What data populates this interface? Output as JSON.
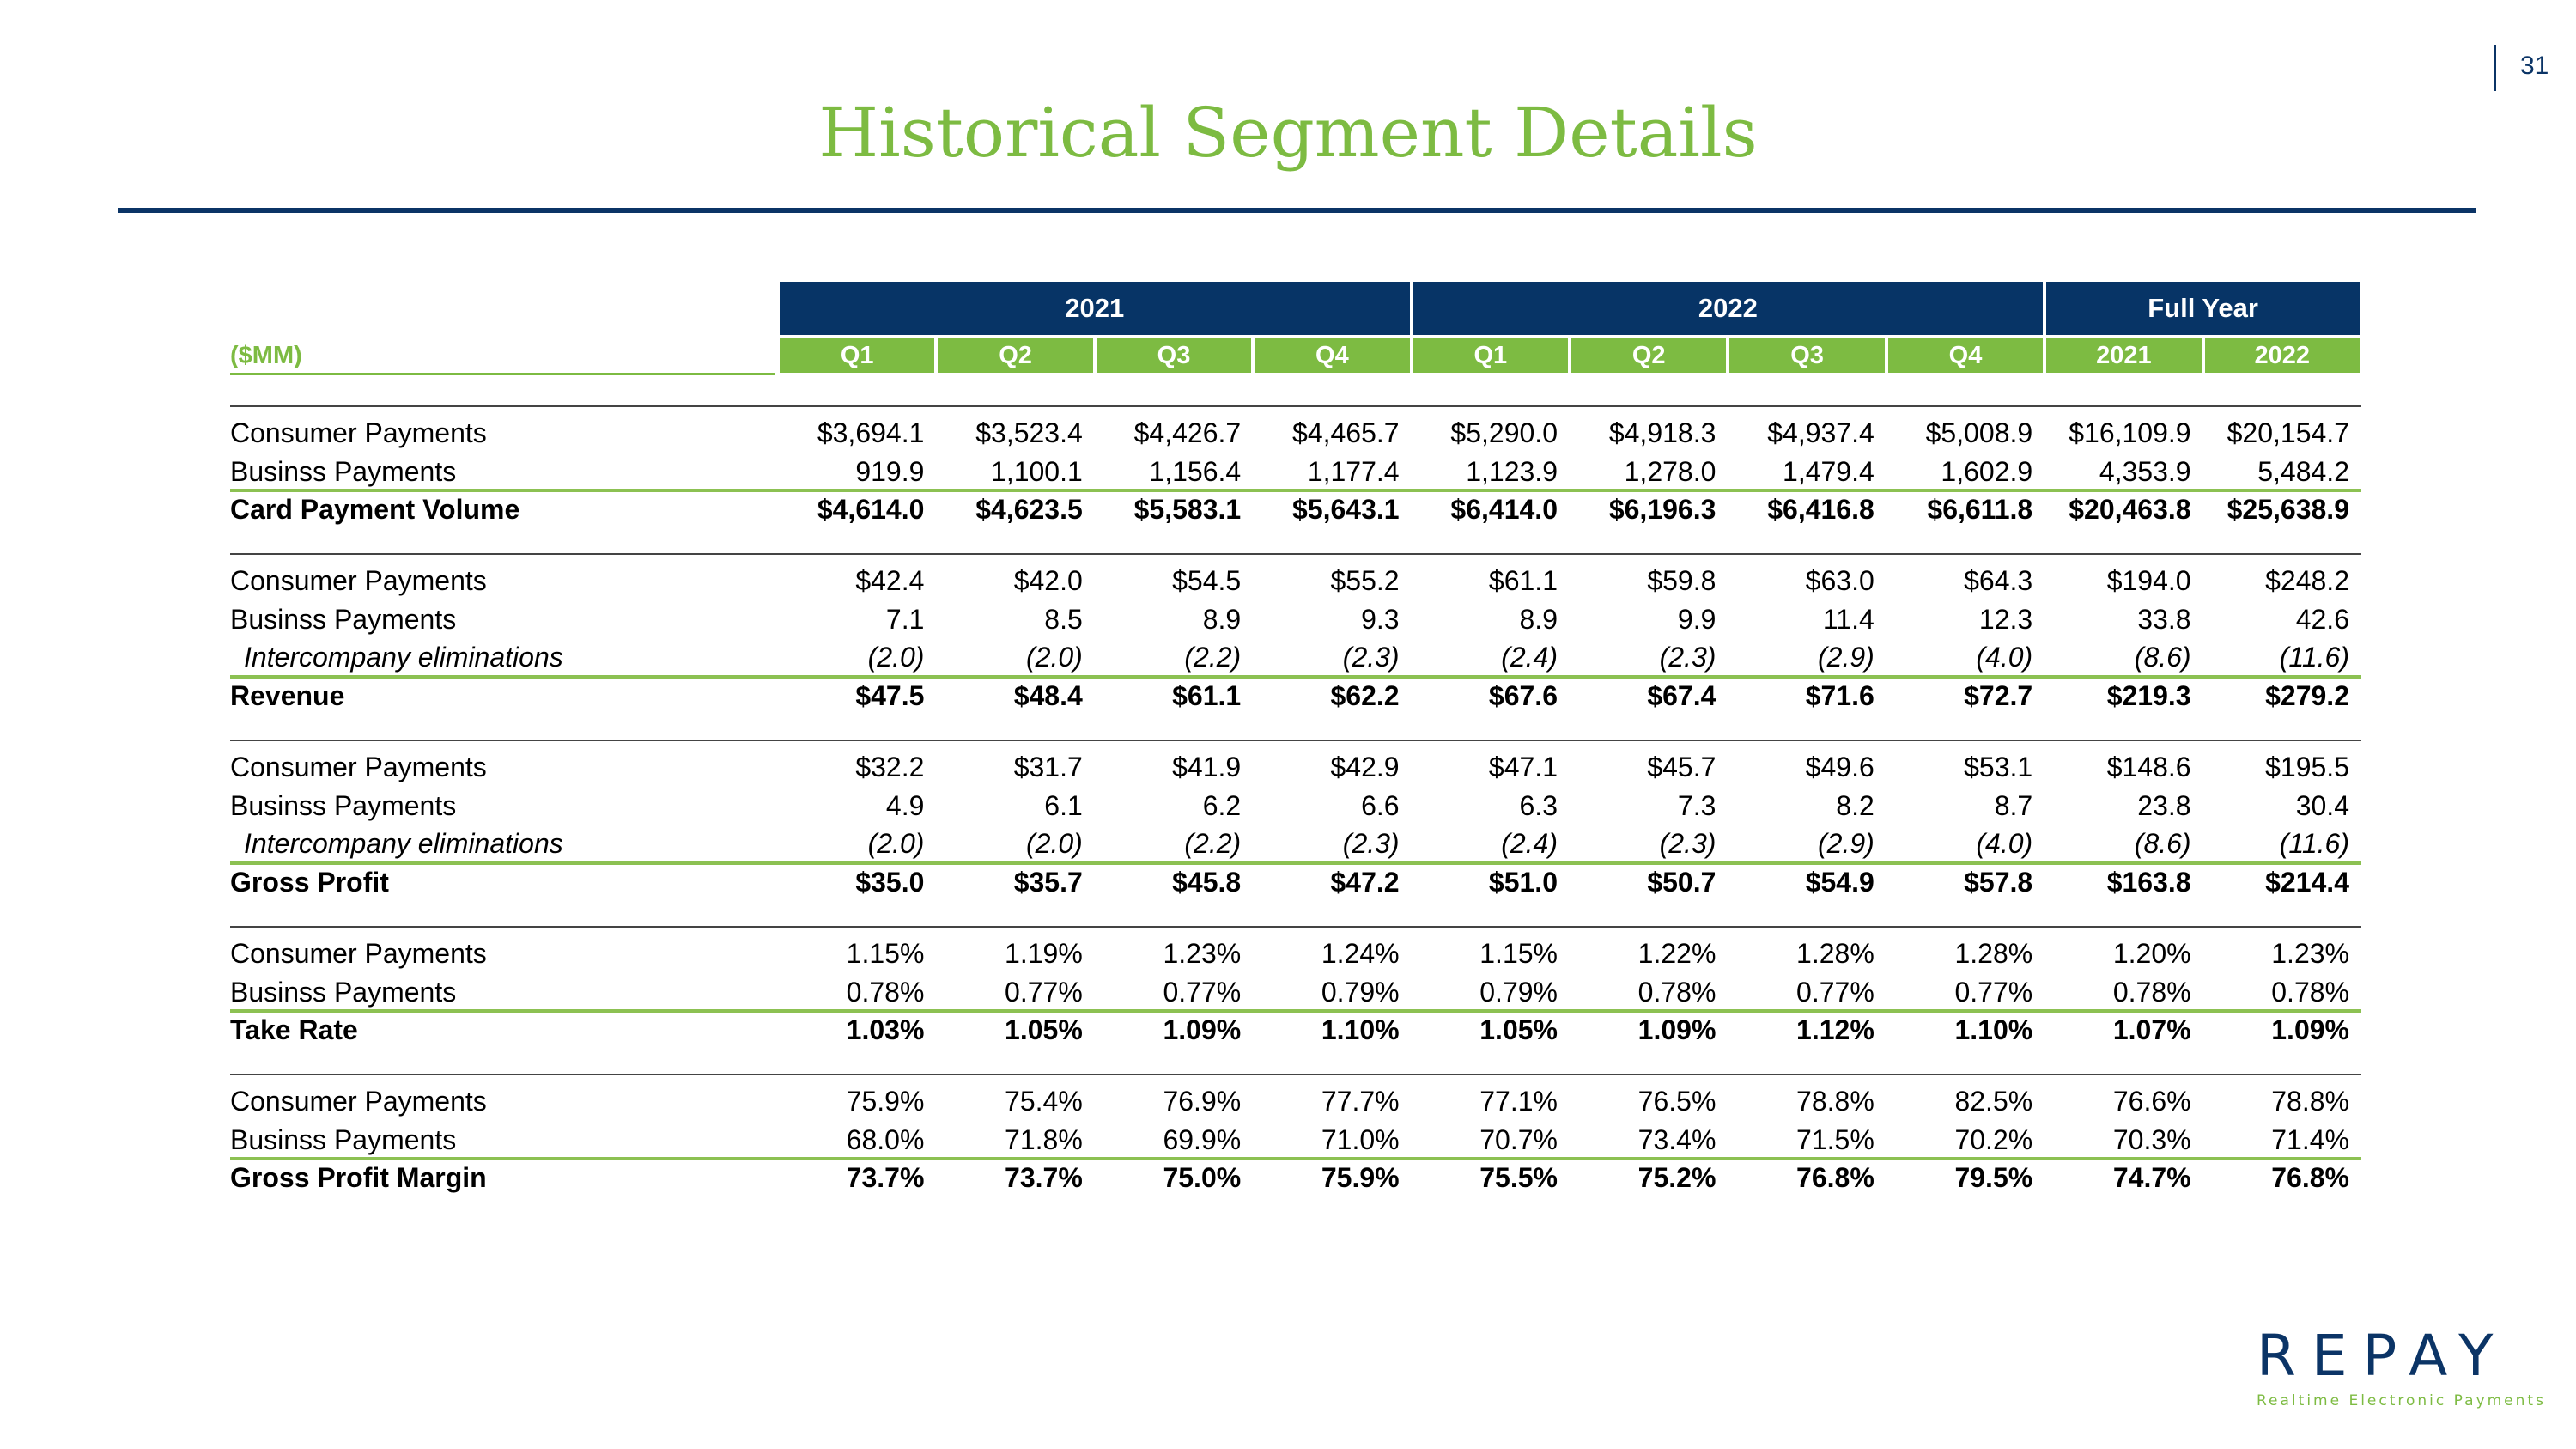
{
  "page_number": "31",
  "title": "Historical Segment Details",
  "units_label": "($MM)",
  "year_headers": [
    "2021",
    "2022",
    "Full Year"
  ],
  "quarter_headers": [
    "Q1",
    "Q2",
    "Q3",
    "Q4",
    "Q1",
    "Q2",
    "Q3",
    "Q4",
    "2021",
    "2022"
  ],
  "sections": [
    {
      "rows": [
        {
          "label": "Consumer Payments",
          "style": "normal",
          "values": [
            "$3,694.1",
            "$3,523.4",
            "$4,426.7",
            "$4,465.7",
            "$5,290.0",
            "$4,918.3",
            "$4,937.4",
            "$5,008.9",
            "$16,109.9",
            "$20,154.7"
          ]
        },
        {
          "label": "Businss Payments",
          "style": "normal",
          "values": [
            "919.9",
            "1,100.1",
            "1,156.4",
            "1,177.4",
            "1,123.9",
            "1,278.0",
            "1,479.4",
            "1,602.9",
            "4,353.9",
            "5,484.2"
          ]
        },
        {
          "label": "Card Payment Volume",
          "style": "total",
          "values": [
            "$4,614.0",
            "$4,623.5",
            "$5,583.1",
            "$5,643.1",
            "$6,414.0",
            "$6,196.3",
            "$6,416.8",
            "$6,611.8",
            "$20,463.8",
            "$25,638.9"
          ]
        }
      ]
    },
    {
      "rows": [
        {
          "label": "Consumer Payments",
          "style": "normal",
          "values": [
            "$42.4",
            "$42.0",
            "$54.5",
            "$55.2",
            "$61.1",
            "$59.8",
            "$63.0",
            "$64.3",
            "$194.0",
            "$248.2"
          ]
        },
        {
          "label": "Businss Payments",
          "style": "normal",
          "values": [
            "7.1",
            "8.5",
            "8.9",
            "9.3",
            "8.9",
            "9.9",
            "11.4",
            "12.3",
            "33.8",
            "42.6"
          ]
        },
        {
          "label": "Intercompany eliminations",
          "style": "italic",
          "values": [
            "(2.0)",
            "(2.0)",
            "(2.2)",
            "(2.3)",
            "(2.4)",
            "(2.3)",
            "(2.9)",
            "(4.0)",
            "(8.6)",
            "(11.6)"
          ]
        },
        {
          "label": "Revenue",
          "style": "total",
          "values": [
            "$47.5",
            "$48.4",
            "$61.1",
            "$62.2",
            "$67.6",
            "$67.4",
            "$71.6",
            "$72.7",
            "$219.3",
            "$279.2"
          ]
        }
      ]
    },
    {
      "rows": [
        {
          "label": "Consumer Payments",
          "style": "normal",
          "values": [
            "$32.2",
            "$31.7",
            "$41.9",
            "$42.9",
            "$47.1",
            "$45.7",
            "$49.6",
            "$53.1",
            "$148.6",
            "$195.5"
          ]
        },
        {
          "label": "Businss Payments",
          "style": "normal",
          "values": [
            "4.9",
            "6.1",
            "6.2",
            "6.6",
            "6.3",
            "7.3",
            "8.2",
            "8.7",
            "23.8",
            "30.4"
          ]
        },
        {
          "label": "Intercompany eliminations",
          "style": "italic",
          "values": [
            "(2.0)",
            "(2.0)",
            "(2.2)",
            "(2.3)",
            "(2.4)",
            "(2.3)",
            "(2.9)",
            "(4.0)",
            "(8.6)",
            "(11.6)"
          ]
        },
        {
          "label": "Gross Profit",
          "style": "total",
          "values": [
            "$35.0",
            "$35.7",
            "$45.8",
            "$47.2",
            "$51.0",
            "$50.7",
            "$54.9",
            "$57.8",
            "$163.8",
            "$214.4"
          ]
        }
      ]
    },
    {
      "rows": [
        {
          "label": "Consumer Payments",
          "style": "normal",
          "values": [
            "1.15%",
            "1.19%",
            "1.23%",
            "1.24%",
            "1.15%",
            "1.22%",
            "1.28%",
            "1.28%",
            "1.20%",
            "1.23%"
          ]
        },
        {
          "label": "Businss Payments",
          "style": "normal",
          "values": [
            "0.78%",
            "0.77%",
            "0.77%",
            "0.79%",
            "0.79%",
            "0.78%",
            "0.77%",
            "0.77%",
            "0.78%",
            "0.78%"
          ]
        },
        {
          "label": "Take Rate",
          "style": "total",
          "values": [
            "1.03%",
            "1.05%",
            "1.09%",
            "1.10%",
            "1.05%",
            "1.09%",
            "1.12%",
            "1.10%",
            "1.07%",
            "1.09%"
          ]
        }
      ]
    },
    {
      "rows": [
        {
          "label": "Consumer Payments",
          "style": "normal",
          "values": [
            "75.9%",
            "75.4%",
            "76.9%",
            "77.7%",
            "77.1%",
            "76.5%",
            "78.8%",
            "82.5%",
            "76.6%",
            "78.8%"
          ]
        },
        {
          "label": "Businss Payments",
          "style": "normal",
          "values": [
            "68.0%",
            "71.8%",
            "69.9%",
            "71.0%",
            "70.7%",
            "73.4%",
            "71.5%",
            "70.2%",
            "70.3%",
            "71.4%"
          ]
        },
        {
          "label": "Gross Profit Margin",
          "style": "total",
          "values": [
            "73.7%",
            "73.7%",
            "75.0%",
            "75.9%",
            "75.5%",
            "75.2%",
            "76.8%",
            "79.5%",
            "74.7%",
            "76.8%"
          ]
        }
      ]
    }
  ],
  "logo": {
    "wordmark": "REPAY",
    "tagline": "Realtime Electronic Payments"
  }
}
